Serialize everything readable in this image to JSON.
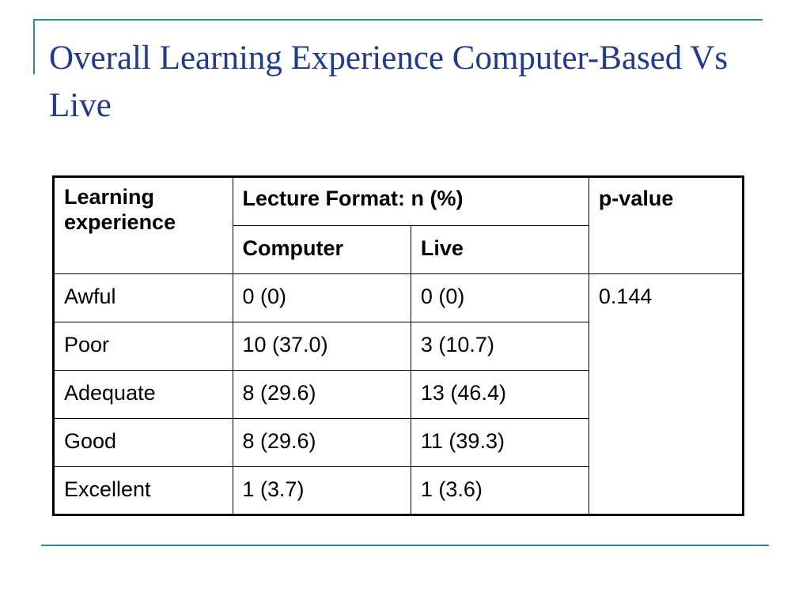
{
  "slide": {
    "title": "Overall Learning Experience Computer-Based Vs Live"
  },
  "table": {
    "headers": {
      "learning_experience": "Learning experience",
      "lecture_format": "Lecture Format: n (%)",
      "p_value": "p-value",
      "computer": "Computer",
      "live": "Live"
    },
    "rows": [
      {
        "experience": "Awful",
        "computer": "0 (0)",
        "live": "0 (0)"
      },
      {
        "experience": "Poor",
        "computer": "10 (37.0)",
        "live": "3 (10.7)"
      },
      {
        "experience": "Adequate",
        "computer": "8 (29.6)",
        "live": "13 (46.4)"
      },
      {
        "experience": "Good",
        "computer": "8 (29.6)",
        "live": "11 (39.3)"
      },
      {
        "experience": "Excellent",
        "computer": "1 (3.7)",
        "live": "1 (3.6)"
      }
    ],
    "p_value": "0.144"
  },
  "colors": {
    "accent": "#2e8b9e",
    "title": "#1f3a93"
  }
}
